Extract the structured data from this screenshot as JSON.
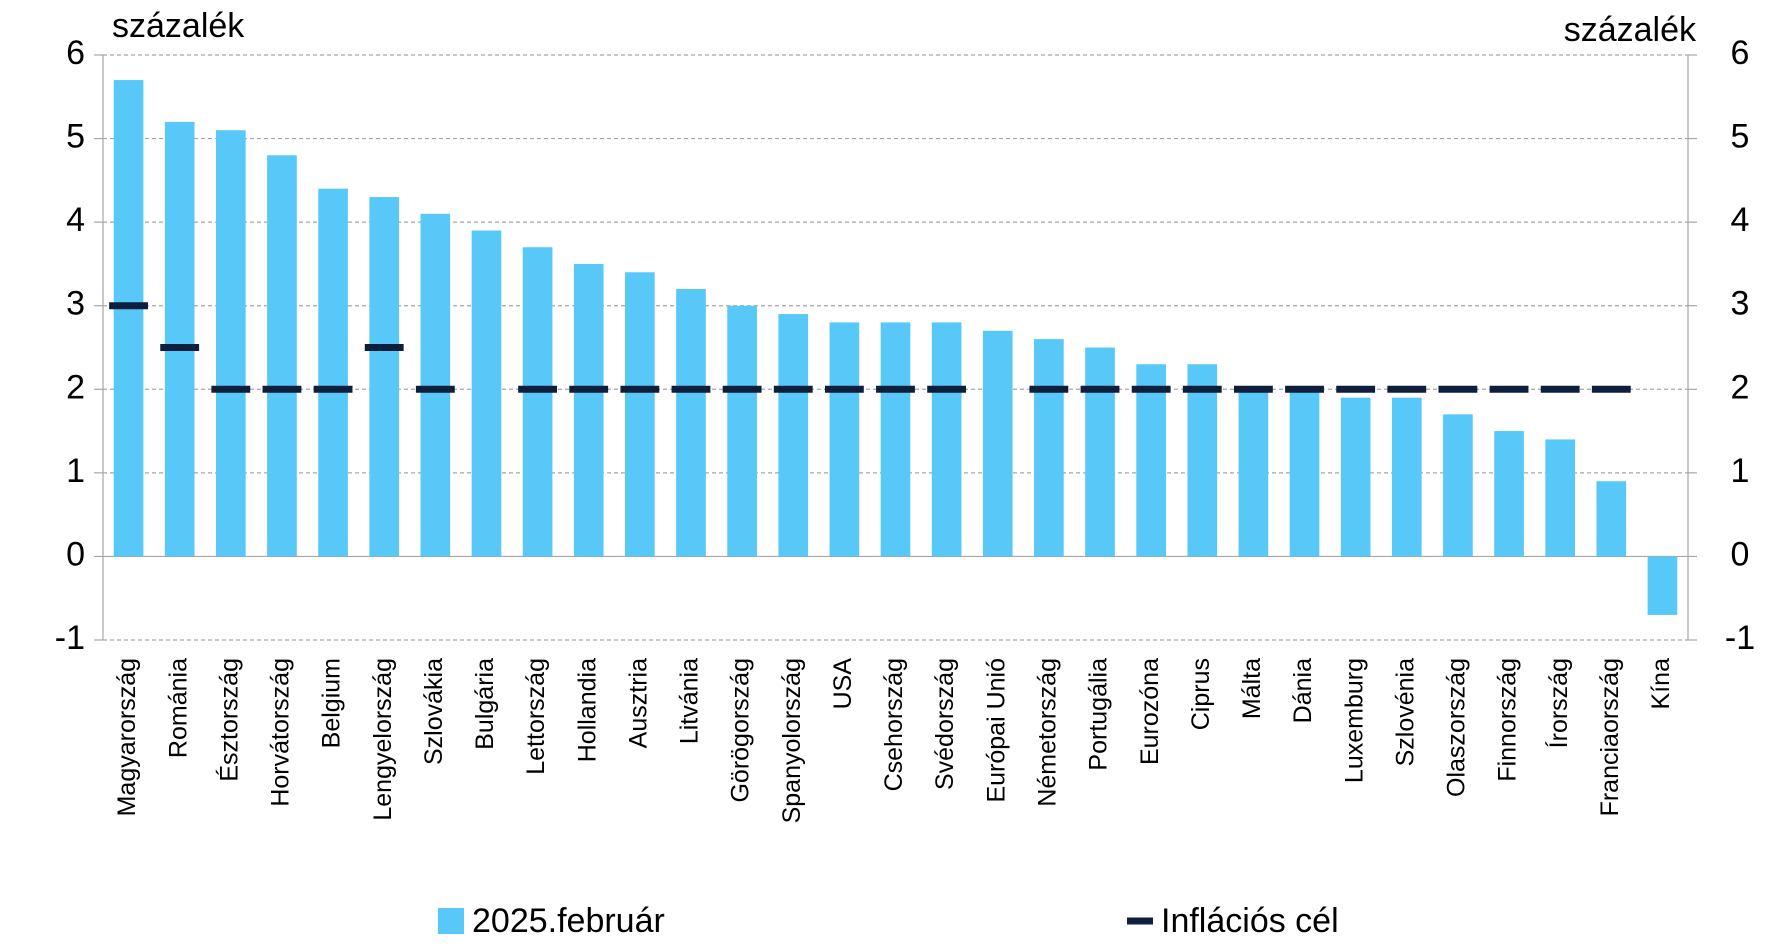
{
  "chart_data": {
    "type": "bar",
    "y_label": "százalék",
    "y2_label": "százalék",
    "categories": [
      "Magyarország",
      "Románia",
      "Észtország",
      "Horvátország",
      "Belgium",
      "Lengyelország",
      "Szlovákia",
      "Bulgária",
      "Lettország",
      "Hollandia",
      "Ausztria",
      "Litvánia",
      "Görögország",
      "Spanyolország",
      "USA",
      "Csehország",
      "Svédország",
      "Európai Unió",
      "Németország",
      "Portugália",
      "Eurozóna",
      "Ciprus",
      "Málta",
      "Dánia",
      "Luxemburg",
      "Szlovénia",
      "Olaszország",
      "Finnország",
      "Írország",
      "Franciaország",
      "Kína"
    ],
    "series": [
      {
        "name": "2025.február",
        "color": "#57c8f7",
        "style": "bar",
        "values": [
          5.7,
          5.2,
          5.1,
          4.8,
          4.4,
          4.3,
          4.1,
          3.9,
          3.7,
          3.5,
          3.4,
          3.2,
          3.0,
          2.9,
          2.8,
          2.8,
          2.8,
          2.7,
          2.6,
          2.5,
          2.3,
          2.3,
          2.0,
          2.0,
          1.9,
          1.9,
          1.7,
          1.5,
          1.4,
          0.9,
          -0.7
        ]
      },
      {
        "name": "Inflációs cél",
        "color": "#0d1f3c",
        "style": "dash",
        "values": [
          3,
          2.5,
          2,
          2,
          2,
          2.5,
          2,
          null,
          2,
          2,
          2,
          2,
          2,
          2,
          2,
          2,
          2,
          null,
          2,
          2,
          2,
          2,
          2,
          2,
          2,
          2,
          2,
          2,
          2,
          2,
          null
        ]
      }
    ],
    "ylim": [
      -1,
      6
    ],
    "yticks": [
      -1,
      0,
      1,
      2,
      3,
      4,
      5,
      6
    ],
    "y2lim": [
      -1,
      6
    ],
    "y2ticks": [
      -1,
      0,
      1,
      2,
      3,
      4,
      5,
      6
    ],
    "grid": true
  }
}
